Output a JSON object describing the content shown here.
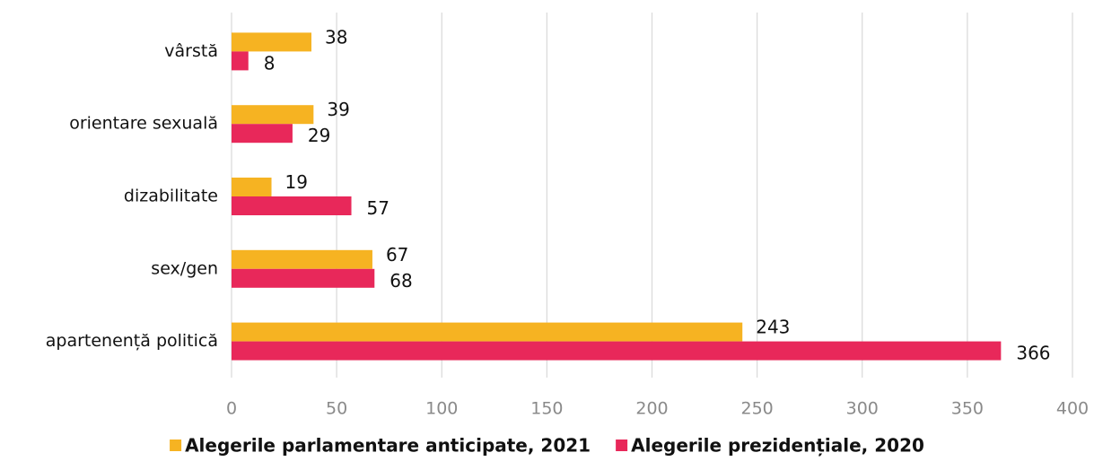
{
  "chart_data": {
    "type": "bar",
    "orientation": "horizontal",
    "categories": [
      "vârstă",
      "orientare sexuală",
      "dizabilitate",
      "sex/gen",
      "apartenență politică"
    ],
    "series": [
      {
        "name": "Alegerile parlamentare anticipate, 2021",
        "color": "#f6b322",
        "values": [
          38,
          39,
          19,
          67,
          243
        ]
      },
      {
        "name": "Alegerile prezidențiale, 2020",
        "color": "#e8285a",
        "values": [
          8,
          29,
          57,
          68,
          366
        ]
      }
    ],
    "xlim": [
      0,
      400
    ],
    "xticks": [
      0,
      50,
      100,
      150,
      200,
      250,
      300,
      350,
      400
    ],
    "grid": true,
    "legend": "bottom"
  }
}
